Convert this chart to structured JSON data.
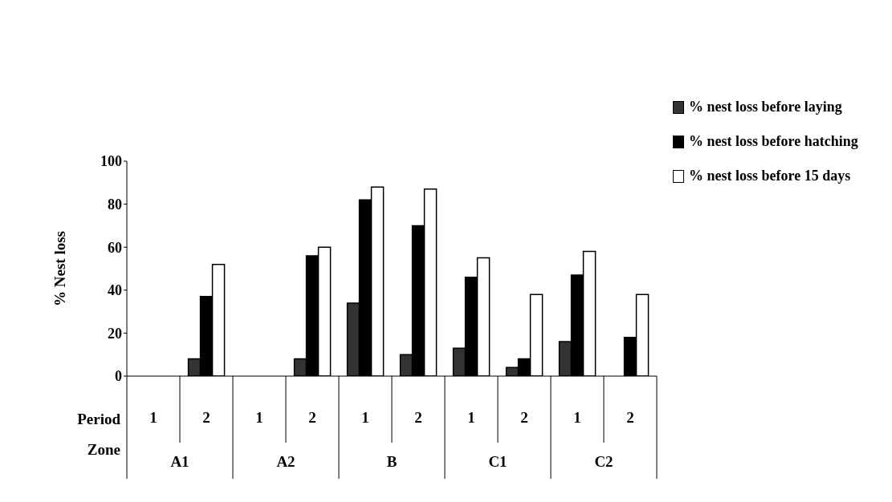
{
  "chart_data": {
    "type": "bar",
    "ylabel": "% Nest loss",
    "categories": [
      "1",
      "2",
      "1",
      "2",
      "1",
      "2",
      "1",
      "2",
      "1",
      "2"
    ],
    "annotations": [
      "Period",
      "Zone",
      "A1",
      "A2",
      "B",
      "C1",
      "C2"
    ],
    "series": [
      {
        "name": "% nest loss before laying",
        "color": "#333333",
        "values": [
          0,
          8,
          0,
          8,
          34,
          10,
          13,
          4,
          16,
          0
        ]
      },
      {
        "name": "% nest loss before hatching",
        "color": "#000000",
        "values": [
          0,
          37,
          0,
          56,
          82,
          70,
          46,
          8,
          47,
          18
        ]
      },
      {
        "name": "% nest loss before 15 days",
        "color": "#ffffff",
        "values": [
          0,
          52,
          0,
          60,
          88,
          87,
          55,
          38,
          58,
          38
        ]
      }
    ],
    "ylim": [
      0,
      100
    ],
    "yticks": [
      0,
      20,
      40,
      60,
      80,
      100
    ],
    "legend": "right"
  }
}
